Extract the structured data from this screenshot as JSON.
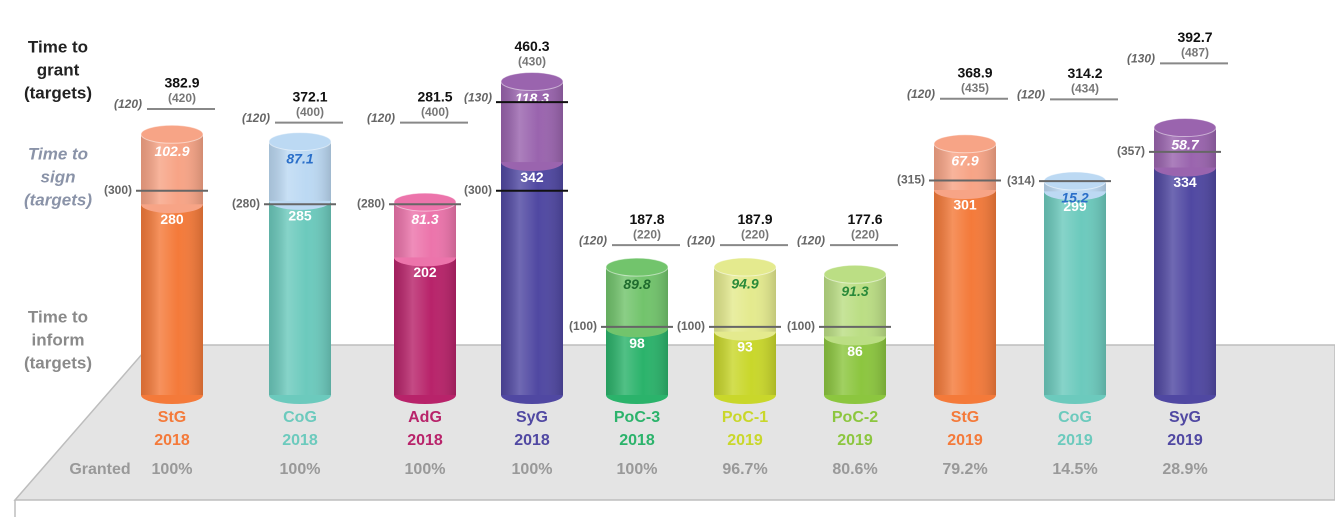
{
  "chart_data": {
    "type": "stacked_cylinder",
    "ylim": [
      0,
      580
    ],
    "row_labels": {
      "grant": [
        "Time to",
        "grant",
        "(targets)"
      ],
      "sign": [
        "Time to",
        "sign",
        "(targets)"
      ],
      "inform": [
        "Time to",
        "inform",
        "(targets)"
      ],
      "granted": "Granted"
    },
    "bars": [
      {
        "name": "StG",
        "year": "2018",
        "color": "#f47a3a",
        "top_color": "#f7a486",
        "sign_text_color": "#ffffff",
        "inform": 280,
        "sign": 102.9,
        "grant": 382.9,
        "inform_target": 300,
        "inform_target_label": "(300)",
        "sign_target": 120,
        "sign_target_label": "(120)",
        "grant_target": 420,
        "grant_target_label": "(420)",
        "granted": 100,
        "granted_label": "100%"
      },
      {
        "name": "CoG",
        "year": "2018",
        "color": "#6ccabd",
        "top_color": "#bcd9f3",
        "sign_text_color": "#2a6fc9",
        "inform": 285,
        "sign": 87.1,
        "grant": 372.1,
        "inform_target": 280,
        "inform_target_label": "(280)",
        "sign_target": 120,
        "sign_target_label": "(120)",
        "grant_target": 400,
        "grant_target_label": "(400)",
        "granted": 100,
        "granted_label": "100%"
      },
      {
        "name": "AdG",
        "year": "2018",
        "color": "#b8236a",
        "top_color": "#ec74ab",
        "sign_text_color": "#ffffff",
        "inform": 202,
        "sign": 81.3,
        "grant": 281.5,
        "inform_target": 280,
        "inform_target_label": "(280)",
        "sign_target": 120,
        "sign_target_label": "(120)",
        "grant_target": 400,
        "grant_target_label": "(400)",
        "granted": 100,
        "granted_label": "100%"
      },
      {
        "name": "SyG",
        "year": "2018",
        "color": "#5048a2",
        "top_color": "#9a64ae",
        "sign_text_color": "#ffffff",
        "inform": 342,
        "sign": 118.3,
        "grant": 460.3,
        "inform_target": 300,
        "inform_target_label": "(300)",
        "sign_target": 130,
        "sign_target_label": "(130)",
        "grant_target": 430,
        "grant_target_label": "(430)",
        "granted": 100,
        "granted_label": "100%"
      },
      {
        "name": "PoC-3",
        "year": "2018",
        "color": "#2bb36b",
        "top_color": "#72c46c",
        "sign_text_color": "#1f6b2e",
        "inform": 98,
        "sign": 89.8,
        "grant": 187.8,
        "inform_target": 100,
        "inform_target_label": "(100)",
        "sign_target": 120,
        "sign_target_label": "(120)",
        "grant_target": 220,
        "grant_target_label": "(220)",
        "granted": 100,
        "granted_label": "100%"
      },
      {
        "name": "PoC-1",
        "year": "2019",
        "color": "#c9d72b",
        "top_color": "#e4ea8e",
        "sign_text_color": "#2a8a3a",
        "inform": 93,
        "sign": 94.9,
        "grant": 187.9,
        "inform_target": 100,
        "inform_target_label": "(100)",
        "sign_target": 120,
        "sign_target_label": "(120)",
        "grant_target": 220,
        "grant_target_label": "(220)",
        "granted": 96.7,
        "granted_label": "96.7%"
      },
      {
        "name": "PoC-2",
        "year": "2019",
        "color": "#8cc63f",
        "top_color": "#bbde84",
        "sign_text_color": "#2a8a3a",
        "inform": 86,
        "sign": 91.3,
        "grant": 177.6,
        "inform_target": 100,
        "inform_target_label": "(100)",
        "sign_target": 120,
        "sign_target_label": "(120)",
        "grant_target": 220,
        "grant_target_label": "(220)",
        "granted": 80.6,
        "granted_label": "80.6%"
      },
      {
        "name": "StG",
        "year": "2019",
        "color": "#f47a3a",
        "top_color": "#f7a486",
        "sign_text_color": "#ffffff",
        "inform": 301,
        "sign": 67.9,
        "grant": 368.9,
        "inform_target": 315,
        "inform_target_label": "(315)",
        "sign_target": 120,
        "sign_target_label": "(120)",
        "grant_target": 435,
        "grant_target_label": "(435)",
        "granted": 79.2,
        "granted_label": "79.2%"
      },
      {
        "name": "CoG",
        "year": "2019",
        "color": "#6ccabd",
        "top_color": "#bcd9f3",
        "sign_text_color": "#2a6fc9",
        "inform": 299,
        "sign": 15.2,
        "grant": 314.2,
        "inform_target": 314,
        "inform_target_label": "(314)",
        "sign_target": 120,
        "sign_target_label": "(120)",
        "grant_target": 434,
        "grant_target_label": "(434)",
        "granted": 14.5,
        "granted_label": "14.5%"
      },
      {
        "name": "SyG",
        "year": "2019",
        "color": "#5048a2",
        "top_color": "#9a64ae",
        "sign_text_color": "#ffffff",
        "inform": 334,
        "sign": 58.7,
        "grant": 392.7,
        "inform_target": 357,
        "inform_target_label": "(357)",
        "sign_target": 130,
        "sign_target_label": "(130)",
        "grant_target": 487,
        "grant_target_label": "(487)",
        "granted": 28.9,
        "granted_label": "28.9%"
      }
    ]
  }
}
